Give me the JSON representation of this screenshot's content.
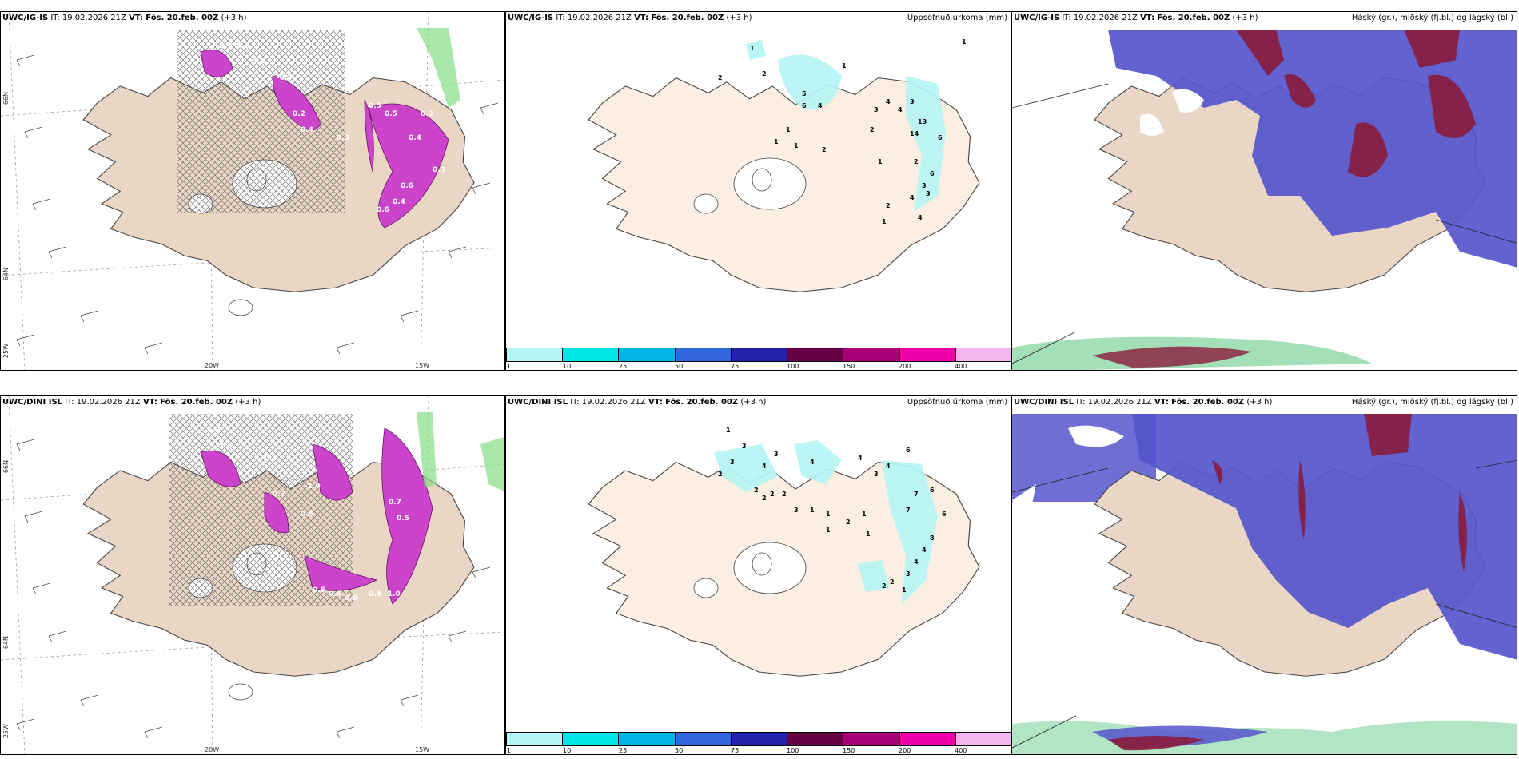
{
  "panels": [
    {
      "model": "UWC/IG-IS",
      "it": "IT: 19.02.2026 21Z",
      "vt_label": "VT:",
      "vt": "Fös. 20.feb. 00Z",
      "lead": "(+3 h)",
      "right": ""
    },
    {
      "model": "UWC/IG-IS",
      "it": "IT: 19.02.2026 21Z",
      "vt_label": "VT:",
      "vt": "Fös. 20.feb. 00Z",
      "lead": "(+3 h)",
      "right": "Uppsöfnuð úrkoma (mm)"
    },
    {
      "model": "UWC/IG-IS",
      "it": "IT: 19.02.2026 21Z",
      "vt_label": "VT:",
      "vt": "Fös. 20.feb. 00Z",
      "lead": "(+3 h)",
      "right": "Háský (gr.), miðský (fj.bl.) og lágský (bl.)"
    },
    {
      "model": "UWC/DINI ISL",
      "it": "IT: 19.02.2026 21Z",
      "vt_label": "VT:",
      "vt": "Fös. 20.feb. 00Z",
      "lead": "(+3 h)",
      "right": ""
    },
    {
      "model": "UWC/DINI ISL",
      "it": "IT: 19.02.2026 21Z",
      "vt_label": "VT:",
      "vt": "Fös. 20.feb. 00Z",
      "lead": "(+3 h)",
      "right": "Uppsöfnuð úrkoma (mm)"
    },
    {
      "model": "UWC/DINI ISL",
      "it": "IT: 19.02.2026 21Z",
      "vt_label": "VT:",
      "vt": "Fös. 20.feb. 00Z",
      "lead": "(+3 h)",
      "right": "Háský (gr.), miðský (fj.bl.) og lágský (bl.)"
    }
  ],
  "colorbar": {
    "colors": [
      "#b5f5f5",
      "#00e5e5",
      "#00b5e5",
      "#3366dd",
      "#2222aa",
      "#660044",
      "#aa0077",
      "#ee00aa",
      "#f5b5f0"
    ],
    "ticks": [
      "1",
      "10",
      "25",
      "50",
      "75",
      "100",
      "150",
      "200",
      "400"
    ]
  },
  "axis_labels": {
    "lat_66": "66N",
    "lat_64": "64N",
    "lon_25": "25W",
    "lon_20": "20W",
    "lon_15": "15W"
  },
  "precip_labels_top": [
    "1",
    "1",
    "2",
    "2",
    "5",
    "6",
    "4",
    "1",
    "1",
    "2",
    "3",
    "4",
    "4",
    "3",
    "13",
    "2",
    "14",
    "6",
    "1",
    "2",
    "6",
    "3",
    "2",
    "1",
    "4",
    "3",
    "4",
    "1",
    "1"
  ],
  "precip_labels_bottom": [
    "1",
    "3",
    "3",
    "2",
    "4",
    "3",
    "4",
    "2",
    "2",
    "2",
    "2",
    "3",
    "1",
    "1",
    "2",
    "1",
    "4",
    "3",
    "4",
    "6",
    "7",
    "6",
    "7",
    "1",
    "1",
    "8",
    "4",
    "3",
    "2",
    "1",
    "2",
    "6",
    "4"
  ],
  "temp_labels_top": [
    "-0.3",
    "0.2",
    "-0.3",
    "-0.3",
    "0.4",
    "0.2",
    "0.6",
    "0.4",
    "0.4",
    "0.3",
    "0.3",
    "0.5",
    "0.5",
    "0.6",
    "0.3"
  ],
  "temp_labels_bottom": [
    "-1.0",
    "-1.0",
    "-0.5",
    "0.4",
    "0.7",
    "0.5",
    "-1.0",
    "0.5",
    "0.6",
    "0.7",
    "0.6",
    "0.6",
    "0.8",
    "-1.0"
  ]
}
